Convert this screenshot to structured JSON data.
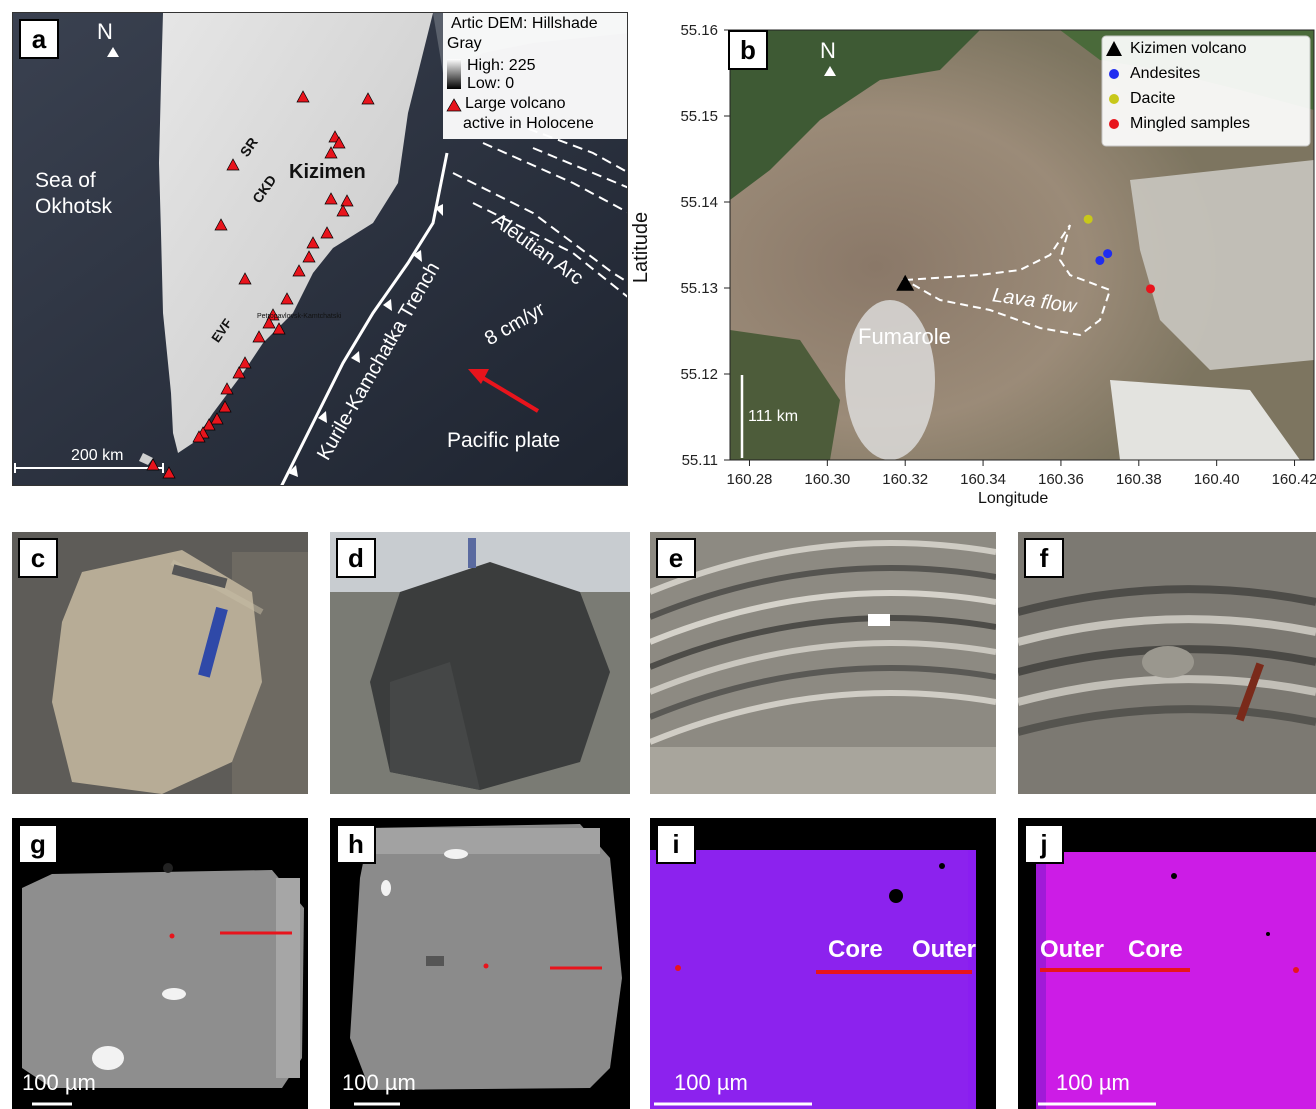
{
  "panels": {
    "a": "a",
    "b": "b",
    "c": "c",
    "d": "d",
    "e": "e",
    "f": "f",
    "g": "g",
    "h": "h",
    "i": "i",
    "j": "j"
  },
  "map_a": {
    "north": "N",
    "legend_title_1": "Artic DEM: Hillshade",
    "legend_title_2": "Gray",
    "legend_high": "High: 225",
    "legend_low": "Low: 0",
    "legend_volcano_1": "Large volcano",
    "legend_volcano_2": "active in Holocene",
    "sea": "Sea of",
    "sea2": "Okhotsk",
    "sr": "SR",
    "ckd": "CKD",
    "kizimen": "Kizimen",
    "evf": "EVF",
    "city": "Petropavlovsk-Kamtchatski",
    "aleutian": "Aleutian Arc",
    "trench": "Kurile-Kamchatka Trench",
    "rate": "8 cm/yr",
    "plate": "Pacific plate",
    "scale": "200 km",
    "colors": {
      "ocean": "#2b3240",
      "land": "#d9d9d9",
      "volcano": "#e8141c",
      "arrow": "#e8141c"
    }
  },
  "map_b": {
    "north": "N",
    "legend": [
      {
        "label": "Kizimen volcano",
        "symbol": "triangle",
        "color": "#000000"
      },
      {
        "label": "Andesites",
        "symbol": "circle",
        "color": "#1f2cf0"
      },
      {
        "label": "Dacite",
        "symbol": "circle",
        "color": "#c8c81a"
      },
      {
        "label": "Mingled samples",
        "symbol": "circle",
        "color": "#e8141c"
      }
    ],
    "fumarole": "Fumarole",
    "lava_flow": "Lava flow",
    "scale": "111 km",
    "ylabel": "Latitude",
    "xlabel": "Longitude",
    "yticks": [
      "55.16",
      "55.15",
      "55.14",
      "55.13",
      "55.12",
      "55.11"
    ],
    "xticks": [
      "160.28",
      "160.30",
      "160.32",
      "160.34",
      "160.36",
      "160.38",
      "160.40",
      "160.42"
    ],
    "xlim": [
      160.275,
      160.425
    ],
    "ylim": [
      55.11,
      55.16
    ],
    "points": [
      {
        "type": "volcano",
        "lon": 160.32,
        "lat": 55.1305,
        "color": "#000000"
      },
      {
        "type": "dacite",
        "lon": 160.367,
        "lat": 55.138,
        "color": "#c8c81a"
      },
      {
        "type": "andesite",
        "lon": 160.372,
        "lat": 55.134,
        "color": "#1f2cf0"
      },
      {
        "type": "andesite",
        "lon": 160.37,
        "lat": 55.1332,
        "color": "#1f2cf0"
      },
      {
        "type": "mingled",
        "lon": 160.383,
        "lat": 55.1299,
        "color": "#e8141c"
      }
    ]
  },
  "micro": {
    "g_scale": "100 µm",
    "h_scale": "100 µm",
    "i_scale": "100 µm",
    "j_scale": "100 µm",
    "i_core": "Core",
    "i_outer": "Outer",
    "j_outer": "Outer",
    "j_core": "Core"
  }
}
